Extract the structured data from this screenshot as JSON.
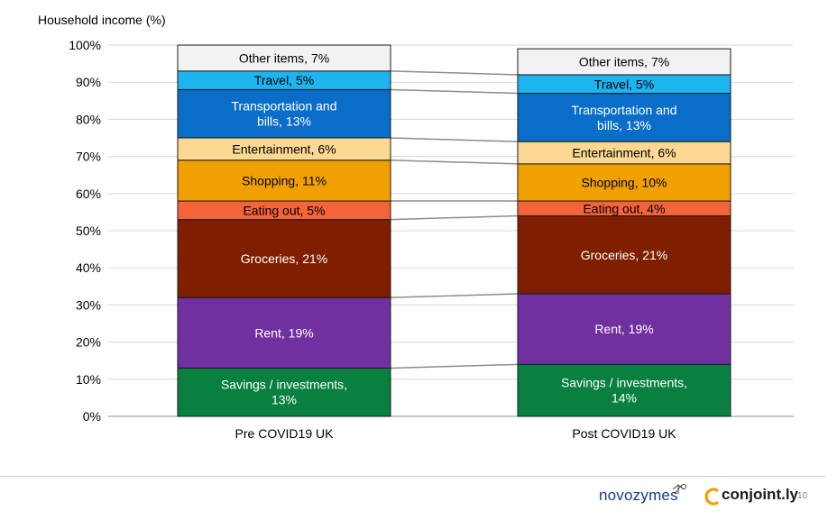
{
  "chart_data": {
    "type": "bar",
    "stacked": true,
    "ylabel": "Household income (%)",
    "ylim": [
      0,
      100
    ],
    "yticks": [
      "0%",
      "10%",
      "20%",
      "30%",
      "40%",
      "50%",
      "60%",
      "70%",
      "80%",
      "90%",
      "100%"
    ],
    "categories": [
      "Pre COVID19 UK",
      "Post COVID19 UK"
    ],
    "grid": true,
    "series": [
      {
        "name": "Savings / investments",
        "color": "#0a8040",
        "text_color": "#ffffff",
        "values": [
          13,
          14
        ],
        "labels": [
          "Savings / investments,\n13%",
          "Savings / investments,\n14%"
        ]
      },
      {
        "name": "Rent",
        "color": "#7030a0",
        "text_color": "#ffffff",
        "values": [
          19,
          19
        ],
        "labels": [
          "Rent, 19%",
          "Rent, 19%"
        ]
      },
      {
        "name": "Groceries",
        "color": "#7f1f00",
        "text_color": "#ffffff",
        "values": [
          21,
          21
        ],
        "labels": [
          "Groceries, 21%",
          "Groceries, 21%"
        ]
      },
      {
        "name": "Eating out",
        "color": "#f4633a",
        "text_color": "#000000",
        "values": [
          5,
          4
        ],
        "labels": [
          "Eating out, 5%",
          "Eating out, 4%"
        ]
      },
      {
        "name": "Shopping",
        "color": "#f0a000",
        "text_color": "#000000",
        "values": [
          11,
          10
        ],
        "labels": [
          "Shopping, 11%",
          "Shopping, 10%"
        ]
      },
      {
        "name": "Entertainment",
        "color": "#fdd892",
        "text_color": "#000000",
        "values": [
          6,
          6
        ],
        "labels": [
          "Entertainment, 6%",
          "Entertainment, 6%"
        ]
      },
      {
        "name": "Transportation and bills",
        "color": "#0a6ec8",
        "text_color": "#ffffff",
        "values": [
          13,
          13
        ],
        "labels": [
          "Transportation and\nbills, 13%",
          "Transportation and\nbills, 13%"
        ]
      },
      {
        "name": "Travel",
        "color": "#1eb4f0",
        "text_color": "#000000",
        "values": [
          5,
          5
        ],
        "labels": [
          "Travel, 5%",
          "Travel, 5%"
        ]
      },
      {
        "name": "Other items",
        "color": "#f2f2f2",
        "text_color": "#000000",
        "values": [
          7,
          7
        ],
        "labels": [
          "Other items, 7%",
          "Other items, 7%"
        ]
      }
    ],
    "connector_lines": true
  },
  "footer": {
    "brand_1": "novozymes",
    "brand_2": "conjoint.ly",
    "page_number": "10"
  }
}
